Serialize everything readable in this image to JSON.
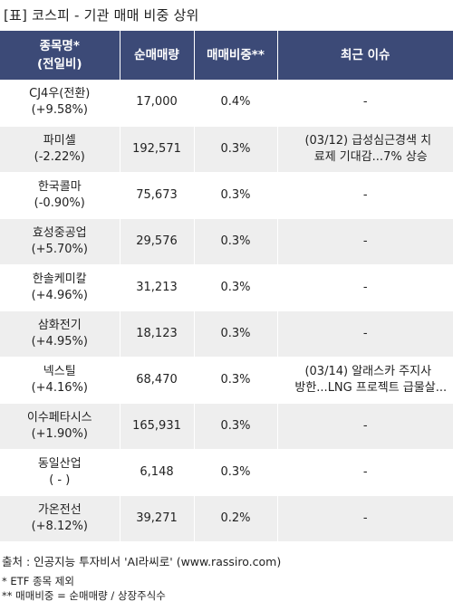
{
  "title": "[표] 코스피 - 기관 매매 비중 상위",
  "header": {
    "col1_line1": "종목명*",
    "col1_line2": "(전일비)",
    "col2": "순매매량",
    "col3": "매매비중**",
    "col4": "최근 이슈"
  },
  "rows": [
    {
      "name": "CJ4우(전환)",
      "change": "(+9.58%)",
      "qty": "17,000",
      "ratio": "0.4%",
      "issue1": "-",
      "issue2": ""
    },
    {
      "name": "파미셀",
      "change": "(-2.22%)",
      "qty": "192,571",
      "ratio": "0.3%",
      "issue1": "(03/12) 급성심근경색 치",
      "issue2": "료제 기대감...7% 상승"
    },
    {
      "name": "한국콜마",
      "change": "(-0.90%)",
      "qty": "75,673",
      "ratio": "0.3%",
      "issue1": "-",
      "issue2": ""
    },
    {
      "name": "효성중공업",
      "change": "(+5.70%)",
      "qty": "29,576",
      "ratio": "0.3%",
      "issue1": "-",
      "issue2": ""
    },
    {
      "name": "한솔케미칼",
      "change": "(+4.96%)",
      "qty": "31,213",
      "ratio": "0.3%",
      "issue1": "-",
      "issue2": ""
    },
    {
      "name": "삼화전기",
      "change": "(+4.95%)",
      "qty": "18,123",
      "ratio": "0.3%",
      "issue1": "-",
      "issue2": ""
    },
    {
      "name": "넥스틸",
      "change": "(+4.16%)",
      "qty": "68,470",
      "ratio": "0.3%",
      "issue1": "(03/14) 알래스카 주지사",
      "issue2": "방한...LNG 프로젝트 급물살..."
    },
    {
      "name": "이수페타시스",
      "change": "(+1.90%)",
      "qty": "165,931",
      "ratio": "0.3%",
      "issue1": "-",
      "issue2": ""
    },
    {
      "name": "동일산업",
      "change": "( - )",
      "qty": "6,148",
      "ratio": "0.3%",
      "issue1": "-",
      "issue2": ""
    },
    {
      "name": "가온전선",
      "change": "(+8.12%)",
      "qty": "39,271",
      "ratio": "0.2%",
      "issue1": "-",
      "issue2": ""
    }
  ],
  "footer": {
    "source": "출처 : 인공지능 투자비서 'AI라씨로' (www.rassiro.com)",
    "note1": "* ETF 종목 제외",
    "note2": "** 매매비중 = 순매매량 / 상장주식수"
  },
  "colors": {
    "header_bg": "#3c4a77",
    "ratio_red": "#e8201c",
    "stripe": "#eeeeee"
  }
}
